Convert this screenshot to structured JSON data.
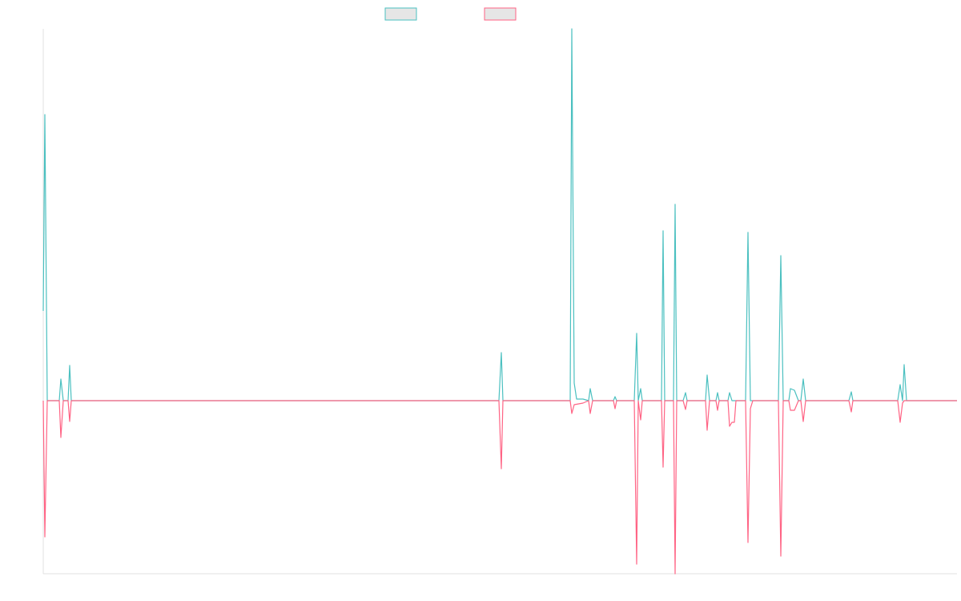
{
  "chart_data": {
    "type": "line",
    "xlim": [
      0,
      1141
    ],
    "ylim": [
      -216,
      464
    ],
    "legend": "top",
    "series": [
      {
        "color": "#4bc0c0",
        "x": [
          0,
          2,
          5,
          20,
          22,
          25,
          31,
          33,
          35,
          569,
          572,
          574,
          658,
          660,
          663,
          666,
          674,
          681,
          683,
          686,
          712,
          714,
          716,
          738,
          741,
          743,
          746,
          748,
          772,
          774,
          776,
          787,
          789,
          791,
          799,
          802,
          804,
          827,
          829,
          832,
          840,
          842,
          844,
          855,
          857,
          860,
          877,
          880,
          883,
          918,
          921,
          924,
          931,
          933,
          938,
          943,
          946,
          949,
          952,
          1006,
          1009,
          1011,
          1067,
          1070,
          1073,
          1075,
          1078,
          1141
        ],
        "values": [
          112,
          357,
          0,
          0,
          27,
          0,
          0,
          44,
          0,
          0,
          60,
          0,
          0,
          464,
          22,
          2,
          2,
          0,
          15,
          0,
          0,
          5,
          0,
          0,
          84,
          0,
          15,
          0,
          0,
          212,
          0,
          0,
          245,
          0,
          0,
          10,
          0,
          0,
          32,
          0,
          0,
          10,
          0,
          0,
          10,
          0,
          0,
          210,
          0,
          0,
          181,
          0,
          0,
          15,
          13,
          0,
          0,
          27,
          0,
          0,
          11,
          0,
          0,
          20,
          0,
          45,
          0,
          0
        ]
      },
      {
        "color": "#ff6384",
        "x": [
          0,
          2,
          5,
          20,
          22,
          25,
          31,
          33,
          35,
          569,
          572,
          574,
          658,
          660,
          663,
          674,
          681,
          683,
          686,
          712,
          714,
          716,
          738,
          741,
          743,
          746,
          748,
          772,
          774,
          776,
          787,
          789,
          791,
          799,
          802,
          804,
          827,
          829,
          832,
          840,
          842,
          844,
          855,
          857,
          860,
          863,
          865,
          877,
          880,
          883,
          886,
          918,
          921,
          924,
          931,
          933,
          938,
          943,
          946,
          949,
          952,
          1006,
          1009,
          1011,
          1067,
          1070,
          1073,
          1075,
          1078,
          1141
        ],
        "values": [
          0,
          -170,
          0,
          0,
          -46,
          0,
          0,
          -26,
          0,
          0,
          -85,
          0,
          0,
          -16,
          -5,
          -3,
          0,
          -16,
          0,
          0,
          -10,
          0,
          0,
          -204,
          0,
          -24,
          0,
          0,
          -83,
          0,
          0,
          -216,
          0,
          0,
          -11,
          0,
          0,
          -37,
          0,
          0,
          -12,
          0,
          0,
          -32,
          -27,
          -27,
          0,
          0,
          -177,
          -10,
          0,
          0,
          -194,
          0,
          0,
          -12,
          -12,
          0,
          0,
          -26,
          0,
          0,
          -14,
          0,
          0,
          -27,
          -3,
          0,
          0,
          0
        ]
      }
    ]
  }
}
